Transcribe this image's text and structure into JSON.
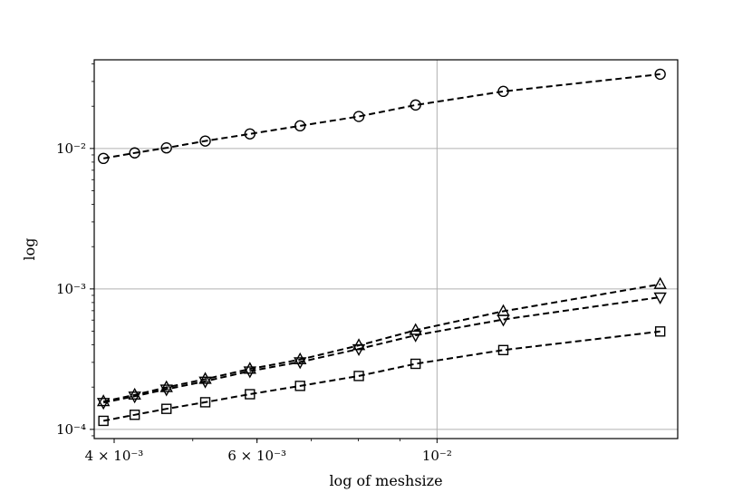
{
  "chart_data": {
    "type": "line",
    "xlabel": "log of meshsize",
    "ylabel": "log",
    "xscale": "log",
    "yscale": "log",
    "xlim": [
      0.00378,
      0.0198
    ],
    "ylim": [
      8.6e-05,
      0.0428
    ],
    "grid": "major",
    "line_style": "black dashed",
    "x_ticks": [
      {
        "value": 0.004,
        "label": "4 × 10⁻³"
      },
      {
        "value": 0.006,
        "label": "6 × 10⁻³"
      },
      {
        "value": 0.01,
        "label": "10⁻²"
      }
    ],
    "y_ticks": [
      {
        "value": 0.0001,
        "label": "10⁻⁴"
      },
      {
        "value": 0.001,
        "label": "10⁻³"
      },
      {
        "value": 0.01,
        "label": "10⁻²"
      }
    ],
    "x": [
      0.00388,
      0.00424,
      0.00464,
      0.00518,
      0.00588,
      0.00678,
      0.00801,
      0.00941,
      0.01207,
      0.01884
    ],
    "series": [
      {
        "marker": "circle",
        "values": [
          0.0085,
          0.0093,
          0.0101,
          0.0113,
          0.0127,
          0.0145,
          0.0169,
          0.0204,
          0.0255,
          0.0338
        ]
      },
      {
        "marker": "triangle-up",
        "values": [
          0.000158,
          0.000176,
          0.000199,
          0.000228,
          0.000269,
          0.000314,
          0.000396,
          0.000508,
          0.000693,
          0.00108
        ]
      },
      {
        "marker": "triangle-down",
        "values": [
          0.000155,
          0.000172,
          0.000193,
          0.00022,
          0.00026,
          0.000302,
          0.000374,
          0.000468,
          0.000606,
          0.000873
        ]
      },
      {
        "marker": "square",
        "values": [
          0.000115,
          0.000127,
          0.00014,
          0.000156,
          0.000178,
          0.000204,
          0.00024,
          0.000293,
          0.000367,
          0.000498
        ]
      }
    ]
  }
}
